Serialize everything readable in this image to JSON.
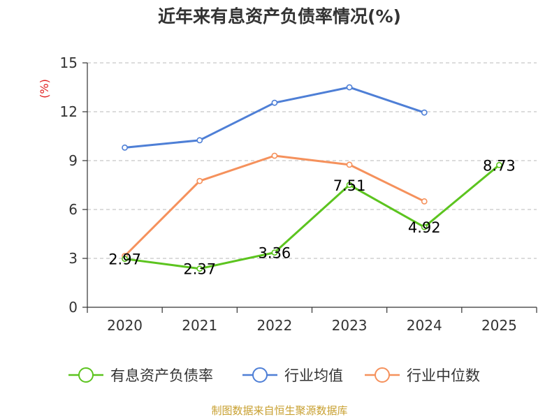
{
  "chart_data": {
    "type": "line",
    "title": "近年来有息资产负债率情况(%)",
    "ylabel_unit": "(%)",
    "categories": [
      "2020",
      "2021",
      "2022",
      "2023",
      "2024",
      "2025"
    ],
    "ylim": [
      0,
      15
    ],
    "yticks": [
      "0",
      "3",
      "6",
      "9",
      "12",
      "15"
    ],
    "grid": true,
    "legend_position": "bottom",
    "series": [
      {
        "name": "有息资产负债率",
        "color": "#5cc41f",
        "values": [
          2.97,
          2.37,
          3.36,
          7.51,
          4.92,
          8.73
        ],
        "labels": [
          "2.97",
          "2.37",
          "3.36",
          "7.51",
          "4.92",
          "8.73"
        ]
      },
      {
        "name": "行业均值",
        "color": "#4e7fd6",
        "values": [
          9.8,
          10.25,
          12.55,
          13.5,
          11.95,
          null
        ]
      },
      {
        "name": "行业中位数",
        "color": "#f5915c",
        "values": [
          3.15,
          7.75,
          9.3,
          8.75,
          6.5,
          null
        ]
      }
    ]
  },
  "source": "制图数据来自恒生聚源数据库"
}
